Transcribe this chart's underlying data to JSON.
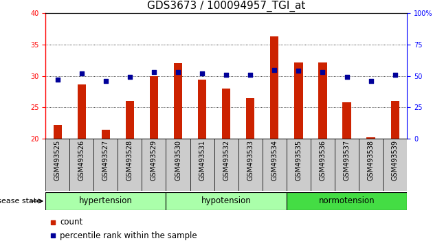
{
  "title": "GDS3673 / 100094957_TGI_at",
  "samples": [
    "GSM493525",
    "GSM493526",
    "GSM493527",
    "GSM493528",
    "GSM493529",
    "GSM493530",
    "GSM493531",
    "GSM493532",
    "GSM493533",
    "GSM493534",
    "GSM493535",
    "GSM493536",
    "GSM493537",
    "GSM493538",
    "GSM493539"
  ],
  "count_values": [
    22.2,
    28.6,
    21.4,
    26.0,
    30.0,
    32.0,
    29.4,
    28.0,
    26.4,
    36.3,
    32.2,
    32.2,
    25.8,
    20.2,
    26.0
  ],
  "percentile_values": [
    47,
    52,
    46,
    49,
    53,
    53,
    52,
    51,
    51,
    55,
    54,
    53,
    49,
    46,
    51
  ],
  "ylim_left": [
    20,
    40
  ],
  "ylim_right": [
    0,
    100
  ],
  "yticks_left": [
    20,
    25,
    30,
    35,
    40
  ],
  "yticks_right": [
    0,
    25,
    50,
    75,
    100
  ],
  "bar_color": "#cc2200",
  "dot_color": "#000099",
  "bar_width": 0.35,
  "title_fontsize": 11,
  "tick_fontsize": 7,
  "label_fontsize": 8.5,
  "group_names": [
    "hypertension",
    "hypotension",
    "normotension"
  ],
  "group_starts": [
    0,
    5,
    10
  ],
  "group_ends": [
    4,
    9,
    14
  ],
  "group_colors": [
    "#aaffaa",
    "#aaffaa",
    "#44dd44"
  ],
  "gridlines": [
    25,
    30,
    35
  ]
}
